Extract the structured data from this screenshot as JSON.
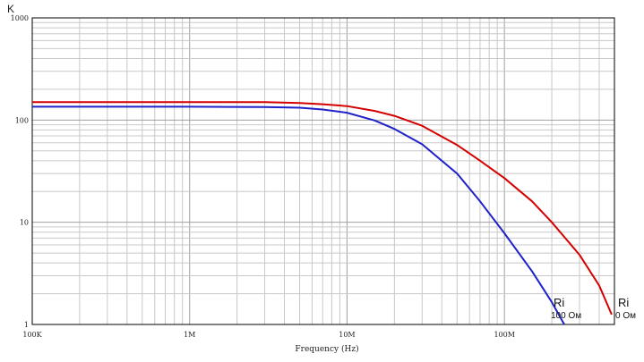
{
  "chart_data": {
    "type": "line",
    "title": "",
    "xlabel": "Frequency (Hz)",
    "ylabel": "K",
    "x_scale": "log",
    "y_scale": "log",
    "xlim": [
      100000,
      500000000
    ],
    "ylim": [
      1,
      1000
    ],
    "grid": true,
    "x_tick_values": [
      100000,
      1000000,
      10000000,
      100000000
    ],
    "x_tick_labels": [
      "100K",
      "1M",
      "10M",
      "100M"
    ],
    "y_tick_values": [
      1,
      10,
      100,
      1000
    ],
    "y_tick_labels": [
      "1",
      "10",
      "100",
      "1000"
    ],
    "series": [
      {
        "color": "#d40000",
        "x": [
          100000,
          1000000,
          3000000,
          5000000,
          7000000,
          10000000,
          15000000,
          20000000,
          30000000,
          50000000,
          70000000,
          100000000,
          150000000,
          200000000,
          300000000,
          400000000,
          480000000
        ],
        "y": [
          150,
          150,
          150,
          147,
          143,
          137,
          123,
          110,
          88,
          57,
          40,
          27,
          16,
          10,
          4.8,
          2.4,
          1.25
        ]
      },
      {
        "color": "#1f22c8",
        "x": [
          100000,
          1000000,
          3000000,
          5000000,
          7000000,
          10000000,
          15000000,
          20000000,
          30000000,
          50000000,
          70000000,
          100000000,
          150000000,
          200000000,
          240000000
        ],
        "y": [
          135,
          135,
          134,
          132,
          127,
          118,
          99,
          82,
          58,
          30,
          16,
          7.8,
          3.3,
          1.65,
          1.0
        ]
      }
    ],
    "annotations": [
      {
        "line1": "Ri",
        "line2": "100 Ом"
      },
      {
        "line1": "Ri",
        "line2": "0 Ом"
      }
    ]
  }
}
